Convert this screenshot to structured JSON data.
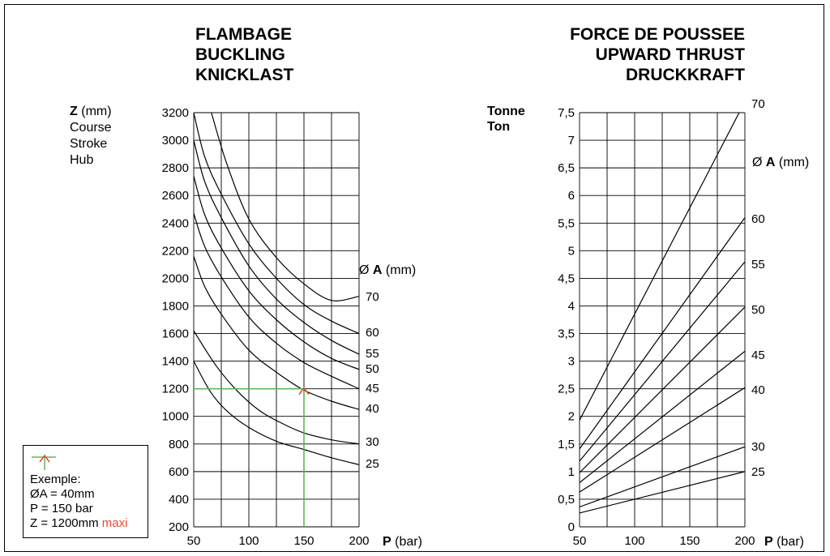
{
  "chart_data": [
    {
      "type": "line",
      "title": [
        "FLAMBAGE",
        "BUCKLING",
        "KNICKLAST"
      ],
      "ylabel": {
        "symbol": "Z",
        "unit": "(mm)",
        "lines": [
          "Course",
          "Stroke",
          "Hub"
        ]
      },
      "xlabel": {
        "symbol": "P",
        "unit": "(bar)"
      },
      "xlim": [
        50,
        200
      ],
      "ylim": [
        200,
        3200
      ],
      "x_ticks": [
        50,
        100,
        150,
        200
      ],
      "y_ticks": [
        200,
        400,
        600,
        800,
        1000,
        1200,
        1400,
        1600,
        1800,
        2000,
        2200,
        2400,
        2600,
        2800,
        3000,
        3200
      ],
      "x_gridlines": [
        50,
        75,
        100,
        125,
        150,
        175,
        200
      ],
      "legend_title": {
        "prefix": "Ø",
        "symbol": "A",
        "unit": "(mm)"
      },
      "series": [
        {
          "name": "25",
          "x": [
            50,
            65,
            80,
            100,
            125,
            150,
            175,
            200
          ],
          "y": [
            1400,
            1180,
            1040,
            920,
            820,
            760,
            700,
            650
          ]
        },
        {
          "name": "30",
          "x": [
            50,
            70,
            90,
            110,
            130,
            150,
            175,
            200
          ],
          "y": [
            1620,
            1370,
            1180,
            1040,
            950,
            880,
            830,
            800
          ]
        },
        {
          "name": "40",
          "x": [
            50,
            60,
            75,
            100,
            125,
            150,
            175,
            200
          ],
          "y": [
            2160,
            1940,
            1740,
            1480,
            1320,
            1190,
            1110,
            1050
          ]
        },
        {
          "name": "45",
          "x": [
            50,
            60,
            75,
            100,
            125,
            150,
            175,
            200
          ],
          "y": [
            2470,
            2230,
            2010,
            1720,
            1530,
            1390,
            1290,
            1200
          ]
        },
        {
          "name": "50",
          "x": [
            50,
            60,
            75,
            100,
            125,
            150,
            175,
            200
          ],
          "y": [
            2740,
            2460,
            2220,
            1910,
            1700,
            1540,
            1420,
            1340
          ]
        },
        {
          "name": "55",
          "x": [
            50,
            60,
            75,
            100,
            125,
            150,
            175,
            200
          ],
          "y": [
            3000,
            2700,
            2440,
            2090,
            1850,
            1680,
            1550,
            1450
          ]
        },
        {
          "name": "60",
          "x": [
            50,
            60,
            75,
            100,
            125,
            150,
            175,
            200
          ],
          "y": [
            3200,
            2880,
            2610,
            2250,
            2000,
            1810,
            1690,
            1600
          ]
        },
        {
          "name": "70",
          "x": [
            66,
            80,
            100,
            125,
            150,
            175,
            200
          ],
          "y": [
            3200,
            2830,
            2430,
            2150,
            1960,
            1840,
            1870
          ]
        }
      ],
      "example": {
        "diameter": "40",
        "P": 150,
        "Z": 1200,
        "line_color": "#5cb85c",
        "marker_color": "#e8482c"
      }
    },
    {
      "type": "line",
      "title": [
        "FORCE DE POUSSEE",
        "UPWARD THRUST",
        "DRUCKKRAFT"
      ],
      "ylabel": {
        "lines": [
          "Tonne",
          "Ton"
        ]
      },
      "xlabel": {
        "symbol": "P",
        "unit": "(bar)"
      },
      "xlim": [
        50,
        200
      ],
      "ylim": [
        0,
        7.5
      ],
      "x_ticks": [
        50,
        100,
        150,
        200
      ],
      "y_ticks": [
        "0",
        "0,5",
        "1",
        "1,5",
        "2",
        "2,5",
        "3",
        "3,5",
        "4",
        "4,5",
        "5",
        "5,5",
        "6",
        "6,5",
        "7",
        "7,5"
      ],
      "x_gridlines": [
        50,
        75,
        100,
        125,
        150,
        175,
        200
      ],
      "legend_title": {
        "prefix": "Ø",
        "symbol": "A",
        "unit": "(mm)"
      },
      "series": [
        {
          "name": "25",
          "x": [
            50,
            200
          ],
          "y": [
            0.25,
            1.0
          ]
        },
        {
          "name": "30",
          "x": [
            50,
            200
          ],
          "y": [
            0.36,
            1.45
          ]
        },
        {
          "name": "40",
          "x": [
            50,
            200
          ],
          "y": [
            0.63,
            2.52
          ]
        },
        {
          "name": "45",
          "x": [
            50,
            200
          ],
          "y": [
            0.8,
            3.18
          ]
        },
        {
          "name": "50",
          "x": [
            50,
            200
          ],
          "y": [
            0.98,
            3.98
          ]
        },
        {
          "name": "55",
          "x": [
            50,
            200
          ],
          "y": [
            1.19,
            4.8
          ]
        },
        {
          "name": "60",
          "x": [
            50,
            200
          ],
          "y": [
            1.41,
            5.6
          ]
        },
        {
          "name": "70",
          "x": [
            50,
            200
          ],
          "y": [
            1.93,
            7.7
          ]
        }
      ]
    }
  ],
  "legend_box": {
    "line1": "Exemple:",
    "line2": "ØA = 40mm",
    "line3": "P = 150 bar",
    "line4_prefix": "Z = 1200mm",
    "line4_suffix": "maxi"
  }
}
